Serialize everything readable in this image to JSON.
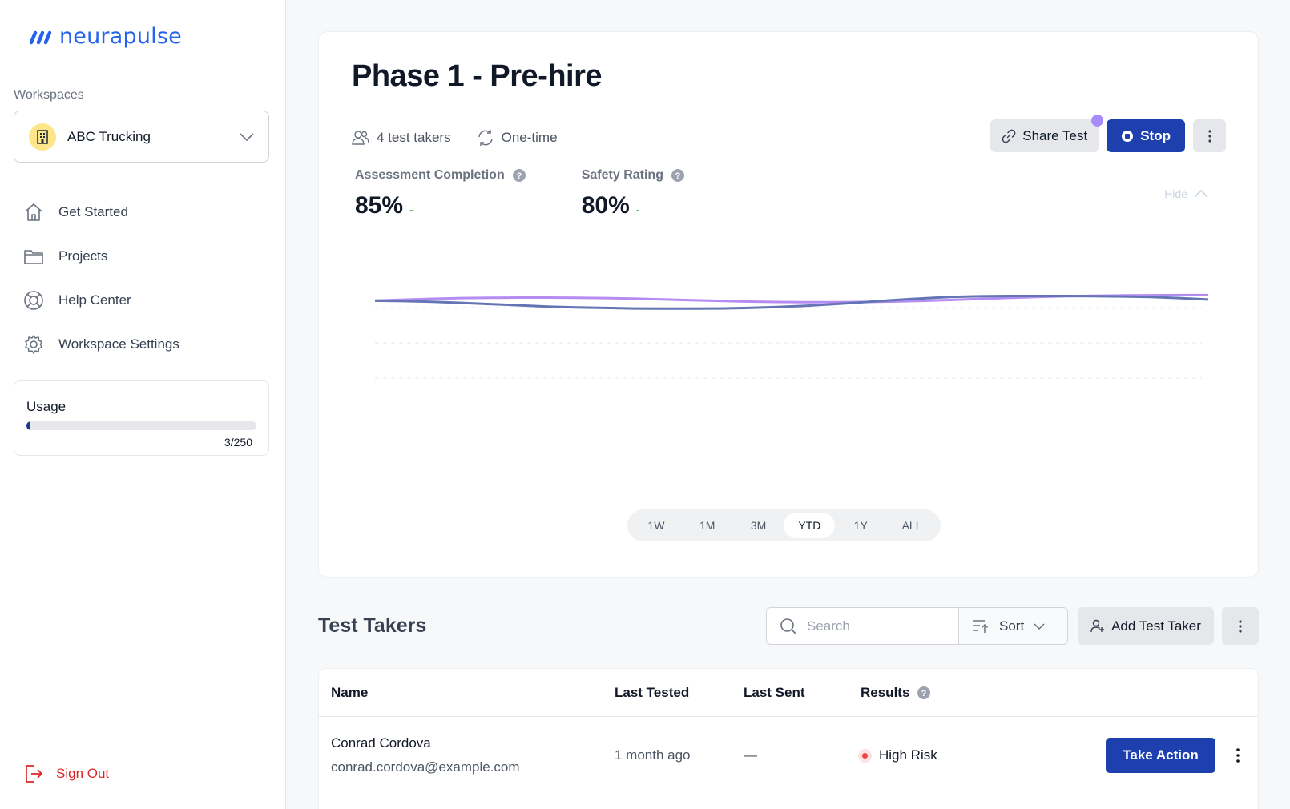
{
  "brand": {
    "name": "neurapulse",
    "color": "#2563eb"
  },
  "sidebar": {
    "workspaces_label": "Workspaces",
    "workspace": {
      "name": "ABC Trucking",
      "icon": "building-icon"
    },
    "nav": [
      {
        "label": "Get Started",
        "icon": "home-icon"
      },
      {
        "label": "Projects",
        "icon": "folder-icon"
      },
      {
        "label": "Help Center",
        "icon": "lifebuoy-icon"
      },
      {
        "label": "Workspace Settings",
        "icon": "gear-icon"
      }
    ],
    "usage": {
      "title": "Usage",
      "used": 3,
      "total": 250,
      "count_text": "3/250"
    },
    "sign_out": "Sign Out"
  },
  "test": {
    "title": "Phase 1 - Pre-hire",
    "takers": "4 test takers",
    "frequency": "One-time",
    "share_label": "Share Test",
    "stop_label": "Stop",
    "hide_label": "Hide",
    "stats": [
      {
        "label": "Assessment Completion",
        "value": "85%",
        "delta": "-"
      },
      {
        "label": "Safety Rating",
        "value": "80%",
        "delta": "-"
      }
    ],
    "ranges": [
      "1W",
      "1M",
      "3M",
      "YTD",
      "1Y",
      "ALL"
    ],
    "active_range": "YTD"
  },
  "chart_data": {
    "type": "line",
    "xlabel": "",
    "ylabel": "",
    "grid": true,
    "ylim": [
      0,
      100
    ],
    "gridlines": [
      40,
      60,
      80
    ],
    "series": [
      {
        "color": "#b48cf2",
        "values": [
          84,
          84.5,
          85,
          85.4,
          85.6,
          85.7,
          85.7,
          85.6,
          85.4,
          85.1,
          84.7,
          84.2,
          83.8,
          83.4,
          83.2,
          83.1,
          83.1,
          83.2,
          83.4,
          83.8,
          84.3,
          84.9,
          85.5,
          86,
          86.4,
          86.7,
          86.9,
          87,
          87.1,
          87.1
        ]
      },
      {
        "color": "#6474b5",
        "values": [
          83.9,
          83.7,
          83.3,
          82.7,
          82,
          81.3,
          80.6,
          80.1,
          79.8,
          79.5,
          79.4,
          79.4,
          79.5,
          79.8,
          80.3,
          81,
          82,
          83.1,
          84.2,
          85.2,
          86,
          86.4,
          86.6,
          86.6,
          86.6,
          86.5,
          86.3,
          86,
          85.4,
          84.6
        ]
      }
    ]
  },
  "takers_section": {
    "title": "Test Takers",
    "search_placeholder": "Search",
    "sort_label": "Sort",
    "add_label": "Add Test Taker",
    "columns": {
      "name": "Name",
      "last_tested": "Last Tested",
      "last_sent": "Last Sent",
      "results": "Results"
    },
    "rows": [
      {
        "name": "Conrad Cordova",
        "email": "conrad.cordova@example.com",
        "last_tested": "1 month ago",
        "last_sent": "—",
        "result": "High Risk",
        "action": "Take Action"
      }
    ]
  }
}
